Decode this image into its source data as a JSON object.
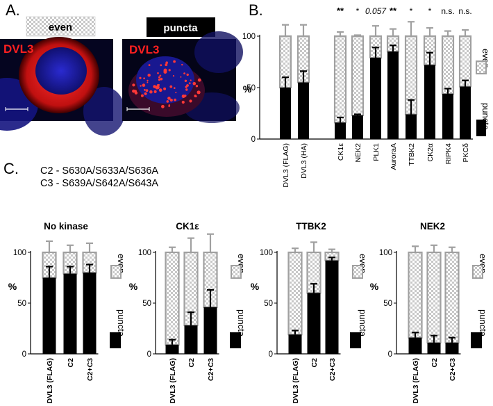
{
  "panels": {
    "a_letter": "A.",
    "b_letter": "B.",
    "c_letter": "C."
  },
  "micrographs": {
    "even_label": "even",
    "puncta_label": "puncta",
    "stain_label_left": "DVL3",
    "stain_label_right": "DVL3"
  },
  "mutations": {
    "c2": "C2 - S630A/S633A/S636A",
    "c3": "C3 - S639A/S642A/S643A"
  },
  "legend": {
    "even": "even",
    "puncta": "puncta"
  },
  "colors": {
    "bar_fill": "#000000",
    "outline_gray": "#a0a0a0",
    "stain_red": "#ff2020",
    "nucleus_blue": "#1a1ab0"
  },
  "chart_data": [
    {
      "id": "B",
      "type": "bar",
      "stacked": true,
      "title": "",
      "ylabel": "%",
      "ylim": [
        0,
        100
      ],
      "yticks": [
        0,
        50,
        100
      ],
      "categories": [
        "DVL3 (FLAG)",
        "DVL3 (HA)",
        "CK1ε",
        "NEK2",
        "PLK1",
        "AuroraA",
        "TTBK2",
        "CK2α",
        "RIPK4",
        "PKCδ"
      ],
      "group_gap_after_index": 1,
      "series": [
        {
          "name": "puncta",
          "values": [
            50,
            55,
            16,
            23,
            79,
            85,
            24,
            72,
            44,
            51
          ],
          "errors": [
            10,
            11,
            5,
            1,
            10,
            6,
            14,
            12,
            5,
            6
          ]
        },
        {
          "name": "even",
          "values": [
            50,
            45,
            84,
            77,
            21,
            15,
            76,
            28,
            56,
            49
          ],
          "errors": [
            11,
            11,
            4,
            1,
            10,
            7,
            14,
            8,
            5,
            6
          ]
        }
      ],
      "significance": [
        "",
        "",
        "**",
        "*",
        "0.057",
        "**",
        "*",
        "*",
        "n.s.",
        "n.s."
      ]
    },
    {
      "id": "C1",
      "type": "bar",
      "stacked": true,
      "title": "No kinase",
      "ylabel": "%",
      "ylim": [
        0,
        100
      ],
      "yticks": [
        0,
        50,
        100
      ],
      "categories": [
        "DVL3 (FLAG)",
        "C2",
        "C2+C3"
      ],
      "series": [
        {
          "name": "puncta",
          "values": [
            75,
            79,
            80
          ],
          "errors": [
            11,
            7,
            8
          ]
        },
        {
          "name": "even",
          "values": [
            25,
            21,
            20
          ],
          "errors": [
            11,
            7,
            9
          ]
        }
      ]
    },
    {
      "id": "C2",
      "type": "bar",
      "stacked": true,
      "title": "CK1ε",
      "ylabel": "%",
      "ylim": [
        0,
        100
      ],
      "yticks": [
        0,
        50,
        100
      ],
      "categories": [
        "DVL3 (FLAG)",
        "C2",
        "C2+C3"
      ],
      "series": [
        {
          "name": "puncta",
          "values": [
            9,
            28,
            46
          ],
          "errors": [
            5,
            13,
            17
          ]
        },
        {
          "name": "even",
          "values": [
            91,
            72,
            54
          ],
          "errors": [
            5,
            14,
            18
          ]
        }
      ]
    },
    {
      "id": "C3",
      "type": "bar",
      "stacked": true,
      "title": "TTBK2",
      "ylabel": "%",
      "ylim": [
        0,
        100
      ],
      "yticks": [
        0,
        50,
        100
      ],
      "categories": [
        "DVL3 (FLAG)",
        "C2",
        "C2+C3"
      ],
      "series": [
        {
          "name": "puncta",
          "values": [
            19,
            60,
            92
          ],
          "errors": [
            4,
            9,
            3
          ]
        },
        {
          "name": "even",
          "values": [
            81,
            40,
            8
          ],
          "errors": [
            4,
            10,
            3
          ]
        }
      ]
    },
    {
      "id": "C4",
      "type": "bar",
      "stacked": true,
      "title": "NEK2",
      "ylabel": "%",
      "ylim": [
        0,
        100
      ],
      "yticks": [
        0,
        50,
        100
      ],
      "categories": [
        "DVL3 (FLAG)",
        "C2",
        "C2+C3"
      ],
      "series": [
        {
          "name": "puncta",
          "values": [
            16,
            11,
            11
          ],
          "errors": [
            5,
            7,
            5
          ]
        },
        {
          "name": "even",
          "values": [
            84,
            89,
            89
          ],
          "errors": [
            6,
            7,
            5
          ]
        }
      ]
    }
  ]
}
